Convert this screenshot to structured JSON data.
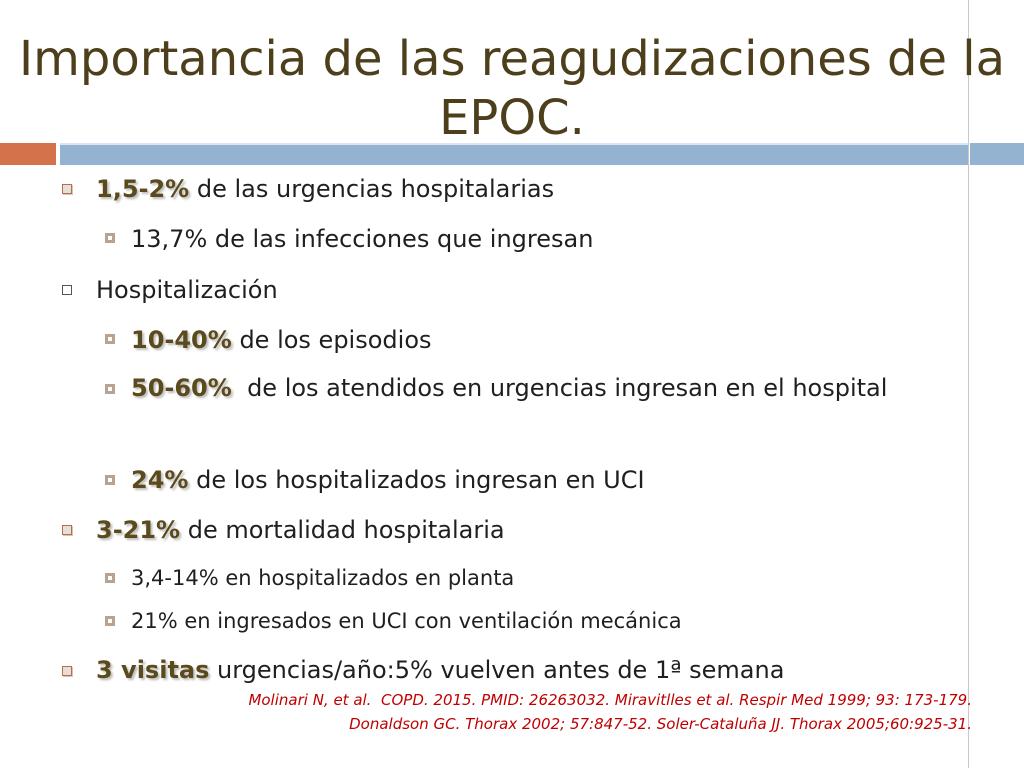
{
  "title": "Importancia de las reagudizaciones de la EPOC.",
  "items": [
    {
      "highlight": "1,5-2%",
      "text": " de las urgencias hospitalarias"
    },
    {
      "text": "13,7% de las infecciones que ingresan"
    },
    {
      "text": "Hospitalización"
    },
    {
      "highlight": "10-40%",
      "text": " de los episodios"
    },
    {
      "highlight": "50-60%",
      "text": "  de los atendidos en urgencias ingresan en el hospital"
    },
    {
      "highlight": "24%",
      "text": " de los hospitalizados ingresan en UCI"
    },
    {
      "highlight": "3-21%",
      "text": " de mortalidad hospitalaria"
    },
    {
      "text": "3,4-14% en hospitalizados en planta"
    },
    {
      "text": "21% en ingresados en UCI con ventilación mecánica"
    },
    {
      "highlight": "3 visitas",
      "text": " urgencias/año:5% vuelven antes de 1ª semana"
    }
  ],
  "references": [
    "Molinari N, et al.  COPD. 2015. PMID: 26263032. Miravitlles et al. Respir Med 1999; 93: 173-179.",
    "Donaldson GC. Thorax 2002; 57:847-52. Soler-Cataluña JJ. Thorax 2005;60:925-31."
  ],
  "colors": {
    "title": "#4d3f1b",
    "accent_orange": "#d4724c",
    "accent_blue": "#93b3d0",
    "highlight_text": "#5b4a1c",
    "references": "#c00000"
  }
}
